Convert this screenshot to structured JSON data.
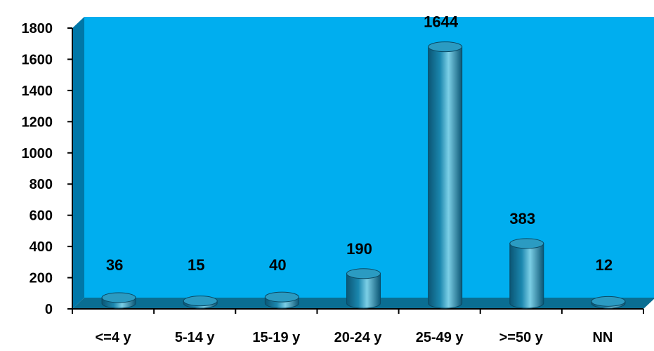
{
  "chart_data": {
    "type": "bar",
    "categories": [
      "<=4 y",
      "5-14 y",
      "15-19 y",
      "20-24 y",
      "25-49 y",
      ">=50 y",
      "NN"
    ],
    "values": [
      36,
      15,
      40,
      190,
      1644,
      383,
      12
    ],
    "data_labels": [
      "36",
      "15",
      "40",
      "190",
      "1644",
      "383",
      "12"
    ],
    "title": "",
    "xlabel": "",
    "ylabel": "",
    "ylim": [
      0,
      1800
    ],
    "yticks": [
      0,
      200,
      400,
      600,
      800,
      1000,
      1200,
      1400,
      1600,
      1800
    ],
    "ytick_labels": [
      "0",
      "200",
      "400",
      "600",
      "800",
      "1000",
      "1200",
      "1400",
      "1600",
      "1800"
    ],
    "bar_style": "3d-cylinder",
    "grid": false,
    "legend": "none",
    "colors": {
      "plot_background": "#00AEEF",
      "plot_side_wall": "#0077A8",
      "floor": "#0A6E92",
      "bar": "#1B87AE",
      "bar_dark": "#0B5675",
      "bar_light": "#7CCFE6",
      "bar_top": "#2B9BC2",
      "axis": "#000000"
    }
  }
}
